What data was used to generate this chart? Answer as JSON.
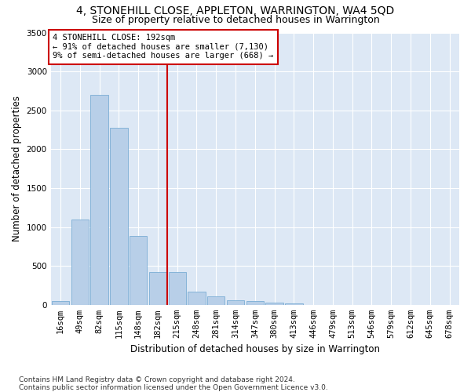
{
  "title": "4, STONEHILL CLOSE, APPLETON, WARRINGTON, WA4 5QD",
  "subtitle": "Size of property relative to detached houses in Warrington",
  "xlabel": "Distribution of detached houses by size in Warrington",
  "ylabel": "Number of detached properties",
  "bar_labels": [
    "16sqm",
    "49sqm",
    "82sqm",
    "115sqm",
    "148sqm",
    "182sqm",
    "215sqm",
    "248sqm",
    "281sqm",
    "314sqm",
    "347sqm",
    "380sqm",
    "413sqm",
    "446sqm",
    "479sqm",
    "513sqm",
    "546sqm",
    "579sqm",
    "612sqm",
    "645sqm",
    "678sqm"
  ],
  "bar_values": [
    50,
    1100,
    2700,
    2280,
    880,
    420,
    420,
    170,
    105,
    60,
    50,
    30,
    20,
    0,
    0,
    0,
    0,
    0,
    0,
    0,
    0
  ],
  "bar_color": "#b8cfe8",
  "bar_edgecolor": "#7aadd4",
  "vline_x": 5.5,
  "vline_color": "#cc0000",
  "annotation_text": "4 STONEHILL CLOSE: 192sqm\n← 91% of detached houses are smaller (7,130)\n9% of semi-detached houses are larger (668) →",
  "annotation_box_color": "#ffffff",
  "annotation_box_edgecolor": "#cc0000",
  "ylim": [
    0,
    3500
  ],
  "yticks": [
    0,
    500,
    1000,
    1500,
    2000,
    2500,
    3000,
    3500
  ],
  "plot_bg_color": "#dde8f5",
  "footer": "Contains HM Land Registry data © Crown copyright and database right 2024.\nContains public sector information licensed under the Open Government Licence v3.0.",
  "title_fontsize": 10,
  "subtitle_fontsize": 9,
  "xlabel_fontsize": 8.5,
  "ylabel_fontsize": 8.5,
  "tick_fontsize": 7.5,
  "footer_fontsize": 6.5
}
